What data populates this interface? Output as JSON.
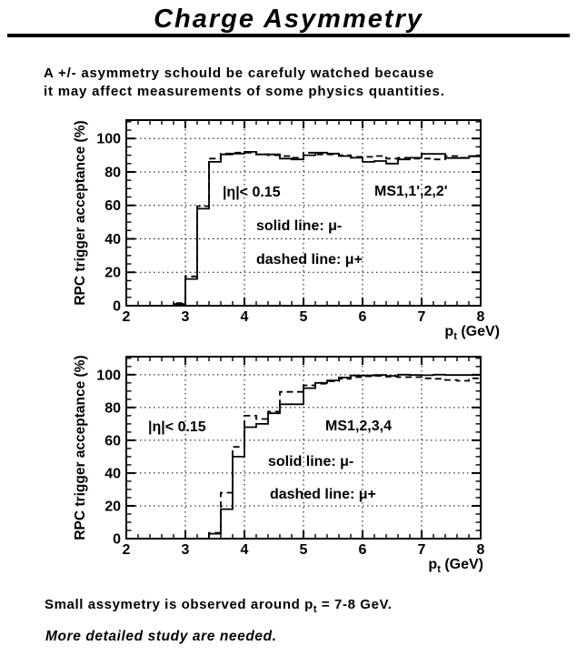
{
  "page": {
    "title": "Charge Asymmetry",
    "intro_line1": "A +/- asymmetry schould be carefuly watched because",
    "intro_line2": "it may affect measurements of some physics quantities.",
    "footer_line1_pre": "Small assymetry is observed around p",
    "footer_line1_sub": "t",
    "footer_line1_post": " = 7-8 GeV.",
    "footer_line2": "More detailed study are needed."
  },
  "colors": {
    "ink": "#000000",
    "paper": "#ffffff"
  },
  "chart_data": [
    {
      "type": "line",
      "subtype": "step-histogram",
      "title": "",
      "xlabel": {
        "base": "p",
        "sub": "t",
        "rest": " (GeV)"
      },
      "ylabel": "RPC trigger acceptance (%)",
      "xlim": [
        2,
        8
      ],
      "ylim": [
        0,
        111
      ],
      "xticks": [
        2,
        3,
        4,
        5,
        6,
        7,
        8
      ],
      "yticks": [
        0,
        20,
        40,
        60,
        80,
        100
      ],
      "x_minor_step": 0.2,
      "y_minor_step": 5,
      "grid": {
        "x": [
          3,
          4,
          5,
          6,
          7
        ],
        "y": [
          20,
          40,
          60,
          80,
          100
        ],
        "style": "dotted"
      },
      "bin_start": 2.0,
      "bin_width": 0.2,
      "annotations": [
        {
          "text": "|η|< 0.15",
          "x": 3.63,
          "y": 65.4
        },
        {
          "text": "MS1,1',2,2'",
          "x": 6.2,
          "y": 65.9
        },
        {
          "text": "solid line: μ-",
          "x": 4.2,
          "y": 45.2
        },
        {
          "text": "dashed line: μ+",
          "x": 4.2,
          "y": 25.1
        }
      ],
      "series": [
        {
          "name": "mu-minus",
          "label": "solid line: μ-",
          "style": "solid",
          "values": [
            0,
            0,
            0,
            0,
            1,
            16,
            58,
            86,
            90.5,
            91,
            92,
            90.5,
            90.5,
            88,
            87.5,
            90,
            91.5,
            91,
            89.5,
            88.5,
            86,
            86.5,
            85,
            87.5,
            88.5,
            90.8,
            90.8,
            88.3,
            88.3,
            89.3
          ]
        },
        {
          "name": "mu-plus",
          "label": "dashed line: μ+",
          "style": "dashed",
          "values": [
            0,
            0,
            0,
            0,
            1.5,
            17.5,
            59.5,
            88,
            91,
            91.5,
            91.5,
            90.5,
            90,
            89.5,
            88.5,
            91.5,
            90.5,
            90.5,
            90,
            89,
            89,
            89.5,
            88,
            88.5,
            88,
            88,
            87.5,
            89.5,
            88.5,
            89.5
          ]
        }
      ]
    },
    {
      "type": "line",
      "subtype": "step-histogram",
      "title": "",
      "xlabel": {
        "base": "p",
        "sub": "t",
        "rest": " (GeV)"
      },
      "ylabel": "RPC trigger acceptance (%)",
      "xlim": [
        2,
        8
      ],
      "ylim": [
        0,
        111
      ],
      "xticks": [
        2,
        3,
        4,
        5,
        6,
        7,
        8
      ],
      "yticks": [
        0,
        20,
        40,
        60,
        80,
        100
      ],
      "x_minor_step": 0.2,
      "y_minor_step": 5,
      "grid": {
        "x": [
          3,
          4,
          5,
          6,
          7
        ],
        "y": [
          20,
          40,
          60,
          80,
          100
        ],
        "style": "dotted"
      },
      "bin_start": 2.0,
      "bin_width": 0.2,
      "annotations": [
        {
          "text": "|η|< 0.15",
          "x": 2.37,
          "y": 65.5
        },
        {
          "text": "MS1,2,3,4",
          "x": 5.37,
          "y": 66
        },
        {
          "text": "solid line: μ-",
          "x": 4.4,
          "y": 44.4
        },
        {
          "text": "dashed line: μ+",
          "x": 4.43,
          "y": 24.4
        }
      ],
      "series": [
        {
          "name": "mu-minus",
          "label": "solid line: μ-",
          "style": "solid",
          "values": [
            0,
            0,
            0,
            0,
            0,
            0,
            0,
            3,
            18,
            50,
            68,
            70,
            76.5,
            82,
            82,
            91.8,
            95,
            96.5,
            98.3,
            99.5,
            99.5,
            99.8,
            99.3,
            100,
            99.8,
            99.7,
            100,
            99.8,
            99.8,
            99.8
          ]
        },
        {
          "name": "mu-plus",
          "label": "dashed line: μ+",
          "style": "dashed",
          "values": [
            0,
            0,
            0,
            0,
            0,
            0,
            0,
            3.5,
            28,
            56,
            75,
            73,
            77.5,
            89.5,
            89.5,
            93.5,
            94.5,
            96,
            97.5,
            98.5,
            99,
            99.3,
            98.8,
            98.5,
            98.5,
            97.8,
            97.5,
            96.8,
            96.3,
            97.8
          ]
        }
      ]
    }
  ]
}
